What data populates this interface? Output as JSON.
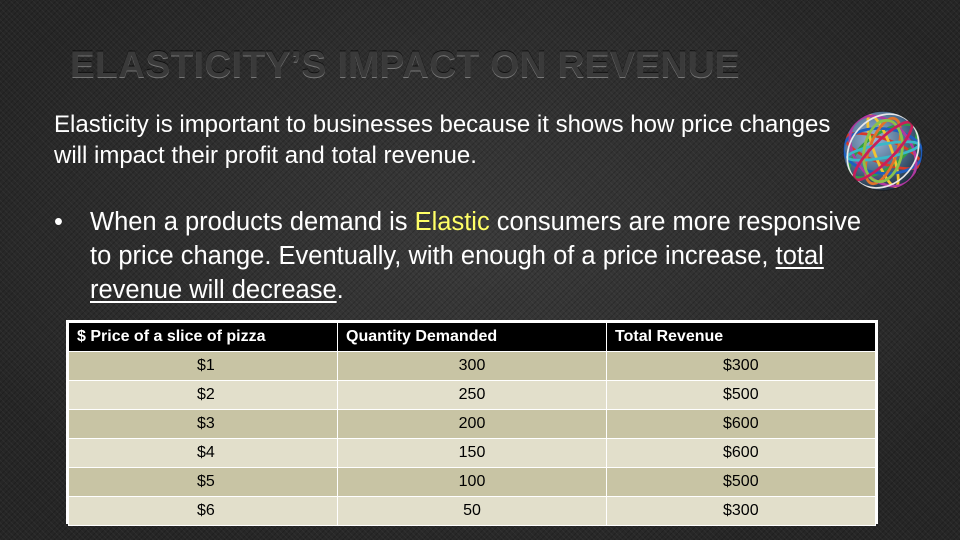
{
  "slide": {
    "title": "ELASTICITY’S IMPACT ON REVENUE",
    "intro": "Elasticity is important to businesses because it shows how price changes will impact their profit and total revenue.",
    "bullet": {
      "marker": "•",
      "part1": "When a products demand is ",
      "highlight": "Elastic",
      "part2": " consumers are more responsive to price change. Eventually, with enough of a price increase, ",
      "underlined": "total revenue will decrease",
      "part3": "."
    },
    "image": "rubber-band-ball",
    "highlight_color": "#ffff66"
  },
  "table": {
    "headers": [
      "$ Price of a slice of pizza",
      "Quantity Demanded",
      "Total Revenue"
    ],
    "rows": [
      [
        "$1",
        "300",
        "$300"
      ],
      [
        "$2",
        "250",
        "$500"
      ],
      [
        "$3",
        "200",
        "$600"
      ],
      [
        "$4",
        "150",
        "$600"
      ],
      [
        "$5",
        "100",
        "$500"
      ],
      [
        "$6",
        "50",
        "$300"
      ]
    ]
  }
}
